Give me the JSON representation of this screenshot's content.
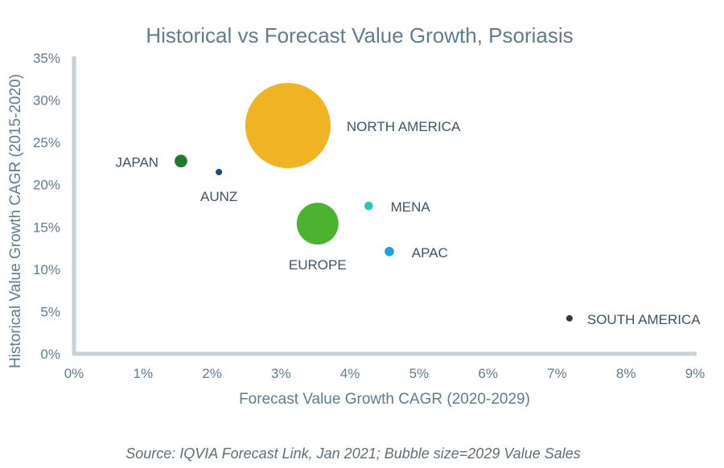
{
  "chart_data": {
    "type": "scatter",
    "title": "Historical vs Forecast Value Growth, Psoriasis",
    "xlabel": "Forecast Value Growth CAGR (2020-2029)",
    "ylabel": "Historical Value Growth CAGR (2015-2020)",
    "xlim": [
      0,
      9
    ],
    "ylim": [
      0,
      35
    ],
    "x_ticks": [
      "0%",
      "1%",
      "2%",
      "3%",
      "4%",
      "5%",
      "6%",
      "7%",
      "8%",
      "9%"
    ],
    "y_ticks": [
      "0%",
      "5%",
      "10%",
      "15%",
      "20%",
      "25%",
      "30%",
      "35%"
    ],
    "grid": false,
    "legend": "none",
    "axis_color": "#c4d2d8",
    "points": [
      {
        "label": "NORTH AMERICA",
        "x": 3.1,
        "y": 27.0,
        "size": 100,
        "color": "#f0b323"
      },
      {
        "label": "JAPAN",
        "x": 1.55,
        "y": 22.8,
        "size": 2.2,
        "color": "#1f7a2e"
      },
      {
        "label": "AUNZ",
        "x": 2.1,
        "y": 21.5,
        "size": 0.5,
        "color": "#1a4e7a"
      },
      {
        "label": "MENA",
        "x": 4.27,
        "y": 17.5,
        "size": 1.0,
        "color": "#2ec4b6"
      },
      {
        "label": "EUROPE",
        "x": 3.53,
        "y": 15.4,
        "size": 24,
        "color": "#4cb230"
      },
      {
        "label": "APAC",
        "x": 4.57,
        "y": 12.1,
        "size": 1.2,
        "color": "#1aa3e0"
      },
      {
        "label": "SOUTH AMERICA",
        "x": 7.18,
        "y": 4.2,
        "size": 0.2,
        "color": "#2a3a45"
      }
    ]
  },
  "source_note": "Source: IQVIA Forecast Link, Jan 2021; Bubble size=2029 Value Sales"
}
